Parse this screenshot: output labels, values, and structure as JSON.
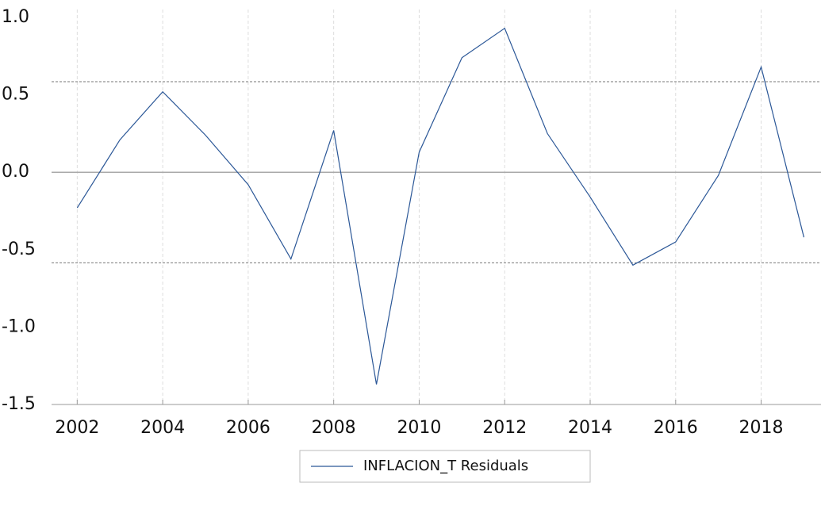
{
  "chart_data": {
    "type": "line",
    "x": [
      2002,
      2003,
      2004,
      2005,
      2006,
      2007,
      2008,
      2009,
      2010,
      2011,
      2012,
      2013,
      2014,
      2015,
      2016,
      2017,
      2018,
      2019
    ],
    "series": [
      {
        "name": "INFLACION_T Residuals",
        "color": "#2b5797",
        "values": [
          -0.23,
          0.21,
          0.52,
          0.24,
          -0.08,
          -0.56,
          0.27,
          -1.37,
          0.13,
          0.74,
          0.93,
          0.25,
          -0.16,
          -0.6,
          -0.45,
          -0.02,
          0.68,
          -0.42
        ]
      }
    ],
    "xlim": [
      2001.4,
      2019.4
    ],
    "xticks": [
      2002,
      2004,
      2006,
      2008,
      2010,
      2012,
      2014,
      2016,
      2018
    ],
    "ylim": [
      -1.5,
      1.0
    ],
    "yticks": [
      {
        "value": -1.5,
        "label": "-1.5"
      },
      {
        "value": -1.0,
        "label": "-1.0"
      },
      {
        "value": -0.5,
        "label": "-0.5"
      },
      {
        "value": 0,
        "label": "0.0"
      },
      {
        "value": 0.5,
        "label": "0.5"
      },
      {
        "value": 1.0,
        "label": "1.0"
      }
    ],
    "std_bands": [
      0.585,
      -0.585
    ],
    "zero_line": 0,
    "grid": true
  }
}
